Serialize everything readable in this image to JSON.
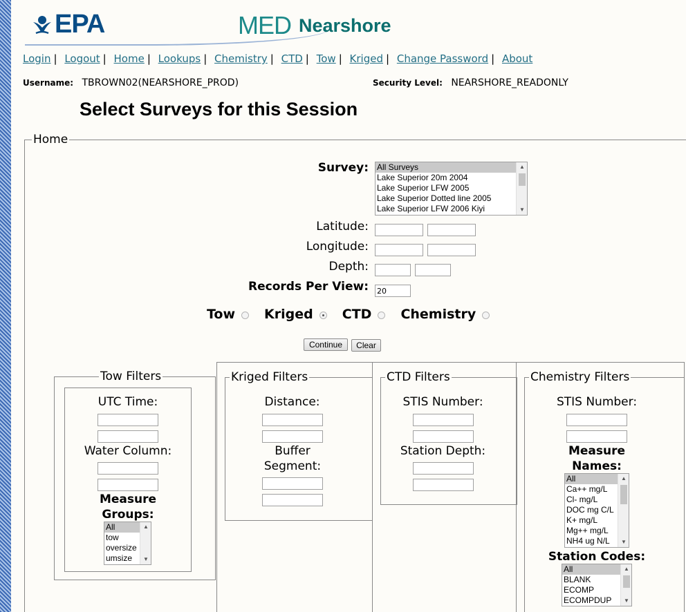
{
  "header": {
    "logo_text": "EPA",
    "brand_med": "MED",
    "brand_nearshore": "Nearshore"
  },
  "nav": [
    "Login",
    "Logout",
    "Home",
    "Lookups",
    "Chemistry",
    "CTD",
    "Tow",
    "Kriged",
    "Change Password",
    "About"
  ],
  "user": {
    "username_label": "Username:",
    "username": "TBROWN02(NEARSHORE_PROD)",
    "security_label": "Security Level:",
    "security": "NEARSHORE_READONLY"
  },
  "page_title": "Select Surveys for this Session",
  "home_legend": "Home",
  "form": {
    "survey_label": "Survey:",
    "surveys": [
      "All Surveys",
      "Lake Superior 20m 2004",
      "Lake Superior LFW 2005",
      "Lake Superior Dotted line 2005",
      "Lake Superior LFW 2006 Kiyi"
    ],
    "latitude_label": "Latitude:",
    "longitude_label": "Longitude:",
    "depth_label": "Depth:",
    "records_label": "Records Per View:",
    "records_value": "20",
    "radio_tow": "Tow",
    "radio_kriged": "Kriged",
    "radio_ctd": "CTD",
    "radio_chem": "Chemistry",
    "selected_radio": "Kriged",
    "continue": "Continue",
    "clear": "Clear"
  },
  "tow": {
    "legend": "Tow Filters",
    "utc": "UTC Time:",
    "water": "Water Column:",
    "mg_label": "Measure Groups:",
    "groups": [
      "All",
      "tow",
      "oversize",
      "umsize"
    ]
  },
  "kriged": {
    "legend": "Kriged Filters",
    "distance": "Distance:",
    "buffer": "Buffer Segment:"
  },
  "ctd": {
    "legend": "CTD Filters",
    "stis": "STIS Number:",
    "station_depth": "Station Depth:"
  },
  "chem": {
    "legend": "Chemistry Filters",
    "stis": "STIS Number:",
    "mn_label": "Measure Names:",
    "names": [
      "All",
      "Ca++ mg/L",
      "Cl- mg/L",
      "DOC mg C/L",
      "K+ mg/L",
      "Mg++ mg/L",
      "NH4 ug N/L"
    ],
    "sc_label": "Station Codes:",
    "codes": [
      "All",
      "BLANK",
      "ECOMP",
      "ECOMPDUP"
    ]
  }
}
